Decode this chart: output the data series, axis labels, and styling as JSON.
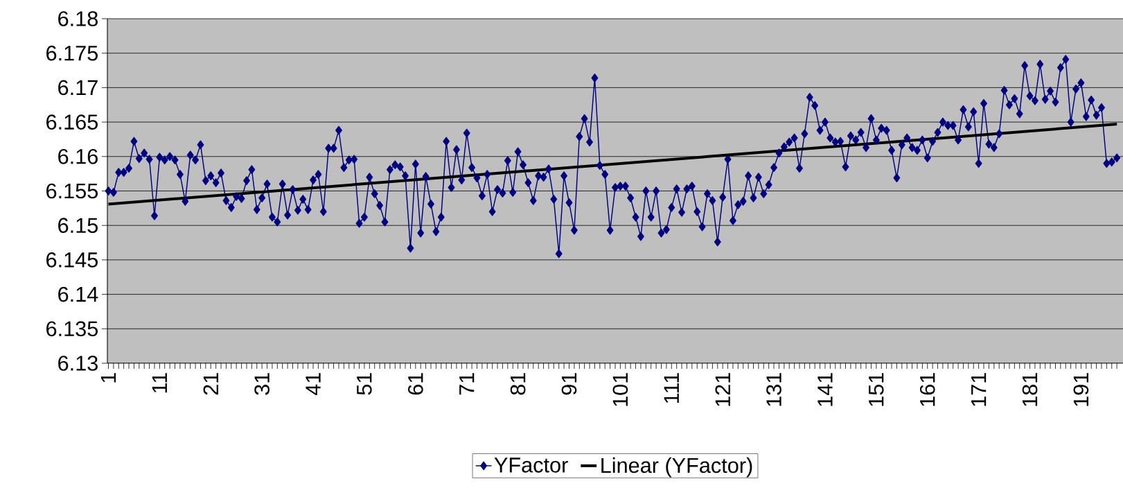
{
  "chart_data": {
    "type": "line",
    "x": [
      1,
      2,
      3,
      4,
      5,
      6,
      7,
      8,
      9,
      10,
      11,
      12,
      13,
      14,
      15,
      16,
      17,
      18,
      19,
      20,
      21,
      22,
      23,
      24,
      25,
      26,
      27,
      28,
      29,
      30,
      31,
      32,
      33,
      34,
      35,
      36,
      37,
      38,
      39,
      40,
      41,
      42,
      43,
      44,
      45,
      46,
      47,
      48,
      49,
      50,
      51,
      52,
      53,
      54,
      55,
      56,
      57,
      58,
      59,
      60,
      61,
      62,
      63,
      64,
      65,
      66,
      67,
      68,
      69,
      70,
      71,
      72,
      73,
      74,
      75,
      76,
      77,
      78,
      79,
      80,
      81,
      82,
      83,
      84,
      85,
      86,
      87,
      88,
      89,
      90,
      91,
      92,
      93,
      94,
      95,
      96,
      97,
      98,
      99,
      100,
      101,
      102,
      103,
      104,
      105,
      106,
      107,
      108,
      109,
      110,
      111,
      112,
      113,
      114,
      115,
      116,
      117,
      118,
      119,
      120,
      121,
      122,
      123,
      124,
      125,
      126,
      127,
      128,
      129,
      130,
      131,
      132,
      133,
      134,
      135,
      136,
      137,
      138,
      139,
      140,
      141,
      142,
      143,
      144,
      145,
      146,
      147,
      148,
      149,
      150,
      151,
      152,
      153,
      154,
      155,
      156,
      157,
      158,
      159,
      160,
      161,
      162,
      163,
      164,
      165,
      166,
      167,
      168,
      169,
      170,
      171,
      172,
      173,
      174,
      175,
      176,
      177,
      178,
      179,
      180,
      181,
      182,
      183,
      184,
      185,
      186,
      187,
      188,
      189,
      190,
      191,
      192,
      193,
      194,
      195,
      196,
      197,
      198
    ],
    "series": [
      {
        "name": "YFactor",
        "color": "#000080",
        "marker": "diamond",
        "values": [
          6.155,
          6.1548,
          6.1577,
          6.1577,
          6.1583,
          6.1622,
          6.1597,
          6.1605,
          6.1596,
          6.1514,
          6.1599,
          6.1595,
          6.16,
          6.1595,
          6.1574,
          6.1535,
          6.1602,
          6.1595,
          6.1617,
          6.1565,
          6.1572,
          6.1562,
          6.1576,
          6.1536,
          6.1526,
          6.1542,
          6.1539,
          6.1565,
          6.1581,
          6.1523,
          6.154,
          6.156,
          6.1512,
          6.1505,
          6.156,
          6.1515,
          6.1552,
          6.1522,
          6.1538,
          6.1523,
          6.1566,
          6.1574,
          6.152,
          6.1612,
          6.1612,
          6.1638,
          6.1584,
          6.1595,
          6.1596,
          6.1503,
          6.1512,
          6.157,
          6.1546,
          6.1529,
          6.1505,
          6.1581,
          6.1588,
          6.1585,
          6.1572,
          6.1467,
          6.1589,
          6.1489,
          6.1571,
          6.1531,
          6.1491,
          6.1512,
          6.1622,
          6.1555,
          6.161,
          6.1566,
          6.1634,
          6.1584,
          6.1569,
          6.1543,
          6.1574,
          6.152,
          6.1552,
          6.1547,
          6.1594,
          6.1548,
          6.1607,
          6.1588,
          6.1562,
          6.1536,
          6.1572,
          6.157,
          6.1582,
          6.1538,
          6.1459,
          6.1572,
          6.1533,
          6.1493,
          6.1629,
          6.1655,
          6.1621,
          6.1714,
          6.1587,
          6.1574,
          6.1493,
          6.1555,
          6.1557,
          6.1557,
          6.154,
          6.1512,
          6.1484,
          6.155,
          6.1512,
          6.155,
          6.1489,
          6.1494,
          6.1526,
          6.1553,
          6.1519,
          6.1553,
          6.1557,
          6.152,
          6.1498,
          6.1546,
          6.1536,
          6.1476,
          6.1541,
          6.1596,
          6.1507,
          6.153,
          6.1535,
          6.1572,
          6.154,
          6.157,
          6.1546,
          6.1559,
          6.1584,
          6.1605,
          6.1614,
          6.1621,
          6.1627,
          6.1583,
          6.1633,
          6.1686,
          6.1674,
          6.1638,
          6.165,
          6.1627,
          6.1621,
          6.1622,
          6.1585,
          6.163,
          6.1624,
          6.1635,
          6.1613,
          6.1655,
          6.1624,
          6.1641,
          6.1638,
          6.1609,
          6.1569,
          6.1617,
          6.1627,
          6.1613,
          6.1609,
          6.1624,
          6.1598,
          6.1622,
          6.1635,
          6.165,
          6.1645,
          6.1645,
          6.1624,
          6.1668,
          6.1643,
          6.1665,
          6.159,
          6.1677,
          6.1618,
          6.1613,
          6.1633,
          6.1696,
          6.1675,
          6.1684,
          6.1662,
          6.1732,
          6.1688,
          6.1681,
          6.1734,
          6.1683,
          6.1695,
          6.1679,
          6.1729,
          6.1741,
          6.165,
          6.1698,
          6.1707,
          6.1658,
          6.1682,
          6.166,
          6.1671,
          6.159,
          6.1592,
          6.1598
        ]
      },
      {
        "name": "Linear (YFactor)",
        "color": "#000000",
        "marker": "none",
        "x": [
          1,
          198
        ],
        "values": [
          6.1531,
          6.1647
        ]
      }
    ],
    "xlim": [
      0.8,
      199.2
    ],
    "xticks": [
      1,
      {
        "value": 2,
        "label": null
      },
      {
        "value": 3,
        "label": null
      },
      {
        "value": 4,
        "label": null
      },
      {
        "value": 5,
        "label": null
      },
      {
        "value": 6,
        "label": null
      },
      {
        "value": 7,
        "label": null
      },
      {
        "value": 8,
        "label": null
      },
      {
        "value": 9,
        "label": null
      },
      {
        "value": 10,
        "label": null
      },
      11,
      {
        "value": 12,
        "label": null
      },
      {
        "value": 13,
        "label": null
      },
      {
        "value": 14,
        "label": null
      },
      {
        "value": 15,
        "label": null
      },
      {
        "value": 16,
        "label": null
      },
      {
        "value": 17,
        "label": null
      },
      {
        "value": 18,
        "label": null
      },
      {
        "value": 19,
        "label": null
      },
      {
        "value": 20,
        "label": null
      },
      21,
      {
        "value": 22,
        "label": null
      },
      {
        "value": 23,
        "label": null
      },
      {
        "value": 24,
        "label": null
      },
      {
        "value": 25,
        "label": null
      },
      {
        "value": 26,
        "label": null
      },
      {
        "value": 27,
        "label": null
      },
      {
        "value": 28,
        "label": null
      },
      {
        "value": 29,
        "label": null
      },
      {
        "value": 30,
        "label": null
      },
      31,
      {
        "value": 32,
        "label": null
      },
      {
        "value": 33,
        "label": null
      },
      {
        "value": 34,
        "label": null
      },
      {
        "value": 35,
        "label": null
      },
      {
        "value": 36,
        "label": null
      },
      {
        "value": 37,
        "label": null
      },
      {
        "value": 38,
        "label": null
      },
      {
        "value": 39,
        "label": null
      },
      {
        "value": 40,
        "label": null
      },
      41,
      {
        "value": 42,
        "label": null
      },
      {
        "value": 43,
        "label": null
      },
      {
        "value": 44,
        "label": null
      },
      {
        "value": 45,
        "label": null
      },
      {
        "value": 46,
        "label": null
      },
      {
        "value": 47,
        "label": null
      },
      {
        "value": 48,
        "label": null
      },
      {
        "value": 49,
        "label": null
      },
      {
        "value": 50,
        "label": null
      },
      51,
      {
        "value": 52,
        "label": null
      },
      {
        "value": 53,
        "label": null
      },
      {
        "value": 54,
        "label": null
      },
      {
        "value": 55,
        "label": null
      },
      {
        "value": 56,
        "label": null
      },
      {
        "value": 57,
        "label": null
      },
      {
        "value": 58,
        "label": null
      },
      {
        "value": 59,
        "label": null
      },
      {
        "value": 60,
        "label": null
      },
      61,
      {
        "value": 62,
        "label": null
      },
      {
        "value": 63,
        "label": null
      },
      {
        "value": 64,
        "label": null
      },
      {
        "value": 65,
        "label": null
      },
      {
        "value": 66,
        "label": null
      },
      {
        "value": 67,
        "label": null
      },
      {
        "value": 68,
        "label": null
      },
      {
        "value": 69,
        "label": null
      },
      {
        "value": 70,
        "label": null
      },
      71,
      {
        "value": 72,
        "label": null
      },
      {
        "value": 73,
        "label": null
      },
      {
        "value": 74,
        "label": null
      },
      {
        "value": 75,
        "label": null
      },
      {
        "value": 76,
        "label": null
      },
      {
        "value": 77,
        "label": null
      },
      {
        "value": 78,
        "label": null
      },
      {
        "value": 79,
        "label": null
      },
      {
        "value": 80,
        "label": null
      },
      81,
      {
        "value": 82,
        "label": null
      },
      {
        "value": 83,
        "label": null
      },
      {
        "value": 84,
        "label": null
      },
      {
        "value": 85,
        "label": null
      },
      {
        "value": 86,
        "label": null
      },
      {
        "value": 87,
        "label": null
      },
      {
        "value": 88,
        "label": null
      },
      {
        "value": 89,
        "label": null
      },
      {
        "value": 90,
        "label": null
      },
      91,
      {
        "value": 92,
        "label": null
      },
      {
        "value": 93,
        "label": null
      },
      {
        "value": 94,
        "label": null
      },
      {
        "value": 95,
        "label": null
      },
      {
        "value": 96,
        "label": null
      },
      {
        "value": 97,
        "label": null
      },
      {
        "value": 98,
        "label": null
      },
      {
        "value": 99,
        "label": null
      },
      {
        "value": 100,
        "label": null
      },
      101,
      {
        "value": 102,
        "label": null
      },
      {
        "value": 103,
        "label": null
      },
      {
        "value": 104,
        "label": null
      },
      {
        "value": 105,
        "label": null
      },
      {
        "value": 106,
        "label": null
      },
      {
        "value": 107,
        "label": null
      },
      {
        "value": 108,
        "label": null
      },
      {
        "value": 109,
        "label": null
      },
      {
        "value": 110,
        "label": null
      },
      111,
      {
        "value": 112,
        "label": null
      },
      {
        "value": 113,
        "label": null
      },
      {
        "value": 114,
        "label": null
      },
      {
        "value": 115,
        "label": null
      },
      {
        "value": 116,
        "label": null
      },
      {
        "value": 117,
        "label": null
      },
      {
        "value": 118,
        "label": null
      },
      {
        "value": 119,
        "label": null
      },
      {
        "value": 120,
        "label": null
      },
      121,
      {
        "value": 122,
        "label": null
      },
      {
        "value": 123,
        "label": null
      },
      {
        "value": 124,
        "label": null
      },
      {
        "value": 125,
        "label": null
      },
      {
        "value": 126,
        "label": null
      },
      {
        "value": 127,
        "label": null
      },
      {
        "value": 128,
        "label": null
      },
      {
        "value": 129,
        "label": null
      },
      {
        "value": 130,
        "label": null
      },
      131,
      {
        "value": 132,
        "label": null
      },
      {
        "value": 133,
        "label": null
      },
      {
        "value": 134,
        "label": null
      },
      {
        "value": 135,
        "label": null
      },
      {
        "value": 136,
        "label": null
      },
      {
        "value": 137,
        "label": null
      },
      {
        "value": 138,
        "label": null
      },
      {
        "value": 139,
        "label": null
      },
      {
        "value": 140,
        "label": null
      },
      141,
      {
        "value": 142,
        "label": null
      },
      {
        "value": 143,
        "label": null
      },
      {
        "value": 144,
        "label": null
      },
      {
        "value": 145,
        "label": null
      },
      {
        "value": 146,
        "label": null
      },
      {
        "value": 147,
        "label": null
      },
      {
        "value": 148,
        "label": null
      },
      {
        "value": 149,
        "label": null
      },
      {
        "value": 150,
        "label": null
      },
      151,
      {
        "value": 152,
        "label": null
      },
      {
        "value": 153,
        "label": null
      },
      {
        "value": 154,
        "label": null
      },
      {
        "value": 155,
        "label": null
      },
      {
        "value": 156,
        "label": null
      },
      {
        "value": 157,
        "label": null
      },
      {
        "value": 158,
        "label": null
      },
      {
        "value": 159,
        "label": null
      },
      {
        "value": 160,
        "label": null
      },
      161,
      {
        "value": 162,
        "label": null
      },
      {
        "value": 163,
        "label": null
      },
      {
        "value": 164,
        "label": null
      },
      {
        "value": 165,
        "label": null
      },
      {
        "value": 166,
        "label": null
      },
      {
        "value": 167,
        "label": null
      },
      {
        "value": 168,
        "label": null
      },
      {
        "value": 169,
        "label": null
      },
      {
        "value": 170,
        "label": null
      },
      171,
      {
        "value": 172,
        "label": null
      },
      {
        "value": 173,
        "label": null
      },
      {
        "value": 174,
        "label": null
      },
      {
        "value": 175,
        "label": null
      },
      {
        "value": 176,
        "label": null
      },
      {
        "value": 177,
        "label": null
      },
      {
        "value": 178,
        "label": null
      },
      {
        "value": 179,
        "label": null
      },
      {
        "value": 180,
        "label": null
      },
      181,
      {
        "value": 182,
        "label": null
      },
      {
        "value": 183,
        "label": null
      },
      {
        "value": 184,
        "label": null
      },
      {
        "value": 185,
        "label": null
      },
      {
        "value": 186,
        "label": null
      },
      {
        "value": 187,
        "label": null
      },
      {
        "value": 188,
        "label": null
      },
      {
        "value": 189,
        "label": null
      },
      {
        "value": 190,
        "label": null
      },
      191,
      {
        "value": 192,
        "label": null
      },
      {
        "value": 193,
        "label": null
      },
      {
        "value": 194,
        "label": null
      },
      {
        "value": 195,
        "label": null
      },
      {
        "value": 196,
        "label": null
      },
      {
        "value": 197,
        "label": null
      },
      {
        "value": 198,
        "label": null
      }
    ],
    "ylim": [
      6.13,
      6.18
    ],
    "yticks": [
      6.13,
      6.135,
      6.14,
      6.145,
      6.15,
      6.155,
      6.16,
      6.165,
      6.17,
      6.175,
      6.18
    ],
    "grid": "y",
    "legend": "bottom"
  }
}
